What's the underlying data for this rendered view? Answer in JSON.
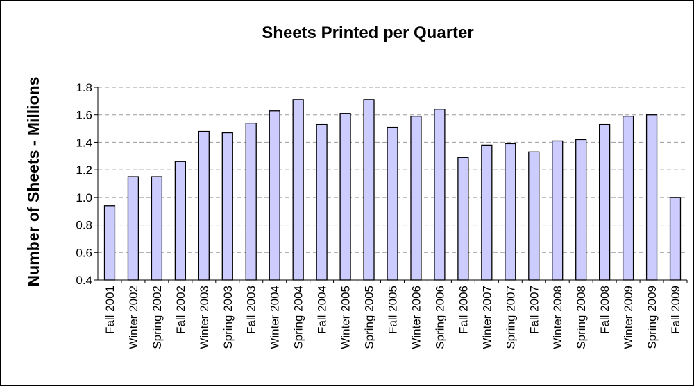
{
  "chart_data": {
    "type": "bar",
    "title": "Sheets Printed per Quarter",
    "xlabel": "",
    "ylabel": "Number of Sheets - Millions",
    "ylim": [
      0.4,
      1.8
    ],
    "yticks": [
      "0.4",
      "0.6",
      "0.8",
      "1.0",
      "1.2",
      "1.4",
      "1.6",
      "1.8"
    ],
    "grid": true,
    "legend": "none",
    "bar_color": "#ccccff",
    "categories": [
      "Fall 2001",
      "Winter 2002",
      "Spring 2002",
      "Fall 2002",
      "Winter 2003",
      "Spring 2003",
      "Fall 2003",
      "Winter 2004",
      "Spring 2004",
      "Fall 2004",
      "Winter 2005",
      "Spring 2005",
      "Fall 2005",
      "Winter 2006",
      "Spring 2006",
      "Fall 2006",
      "Winter 2007",
      "Spring 2007",
      "Fall 2007",
      "Winter 2008",
      "Spring 2008",
      "Fall 2008",
      "Winter 2009",
      "Spring 2009",
      "Fall 2009"
    ],
    "values": [
      0.94,
      1.15,
      1.15,
      1.26,
      1.48,
      1.47,
      1.54,
      1.63,
      1.71,
      1.53,
      1.61,
      1.71,
      1.51,
      1.59,
      1.64,
      1.29,
      1.38,
      1.39,
      1.33,
      1.41,
      1.42,
      1.53,
      1.59,
      1.6,
      1.0
    ]
  }
}
